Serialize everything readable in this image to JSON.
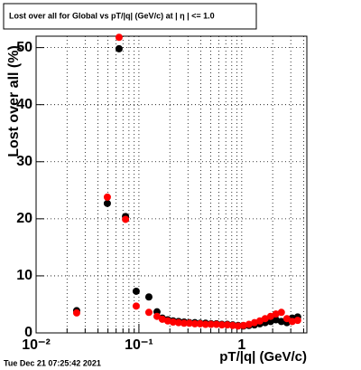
{
  "chart_data": {
    "type": "scatter",
    "title": "Lost over all for Global vs pT/|q| (GeV/c) at | η | <= 1.0",
    "x_label": "pT/|q| (GeV/c)",
    "y_label": "Lost over all (%)",
    "footer": "Tue Dec 21 07:25:42 2021",
    "log_x": true,
    "grid": true,
    "xlim": [
      0.01,
      4.3
    ],
    "ylim": [
      0,
      52
    ],
    "xticks": [
      {
        "value": 0.01,
        "label": "10⁻²"
      },
      {
        "value": 0.1,
        "label": "10⁻¹"
      },
      1
    ],
    "xminorticks": [
      0.02,
      0.03,
      0.04,
      0.05,
      0.06,
      0.07,
      0.08,
      0.09,
      0.2,
      0.3,
      0.4,
      0.5,
      0.6,
      0.7,
      0.8,
      0.9,
      2,
      3,
      4
    ],
    "yticks": [
      0,
      10,
      20,
      30,
      40,
      50
    ],
    "series": [
      {
        "color": "#000000",
        "x": [
          0.0248,
          0.0493,
          0.0641,
          0.0741,
          0.0941,
          0.125,
          0.15,
          0.169,
          0.191,
          0.215,
          0.243,
          0.275,
          0.31,
          0.35,
          0.394,
          0.445,
          0.503,
          0.568,
          0.641,
          0.724,
          0.817,
          0.922,
          1.04,
          1.175,
          1.33,
          1.5,
          1.69,
          1.91,
          2.15,
          2.43,
          2.75,
          3.1,
          3.5
        ],
        "values": [
          3.9,
          22.7,
          49.8,
          20.4,
          7.3,
          6.3,
          3.7,
          2.6,
          2.3,
          2.1,
          2.0,
          1.9,
          1.8,
          1.8,
          1.7,
          1.7,
          1.6,
          1.6,
          1.5,
          1.5,
          1.4,
          1.3,
          1.2,
          1.3,
          1.4,
          1.6,
          1.8,
          2.0,
          2.3,
          2.0,
          1.8,
          2.6,
          2.8
        ]
      },
      {
        "color": "#ff0000",
        "x": [
          0.0248,
          0.0493,
          0.0641,
          0.0741,
          0.0941,
          0.125,
          0.15,
          0.169,
          0.191,
          0.215,
          0.243,
          0.275,
          0.31,
          0.35,
          0.394,
          0.445,
          0.503,
          0.568,
          0.641,
          0.724,
          0.817,
          0.922,
          1.04,
          1.175,
          1.33,
          1.5,
          1.69,
          1.91,
          2.15,
          2.43,
          2.75,
          3.1,
          3.5
        ],
        "values": [
          3.5,
          23.8,
          51.8,
          19.9,
          4.7,
          3.6,
          2.9,
          2.4,
          2.1,
          1.9,
          1.8,
          1.7,
          1.7,
          1.6,
          1.6,
          1.5,
          1.5,
          1.5,
          1.4,
          1.4,
          1.3,
          1.2,
          1.3,
          1.5,
          1.8,
          2.1,
          2.5,
          2.9,
          3.3,
          3.6,
          2.5,
          2.0,
          2.2
        ]
      }
    ]
  }
}
